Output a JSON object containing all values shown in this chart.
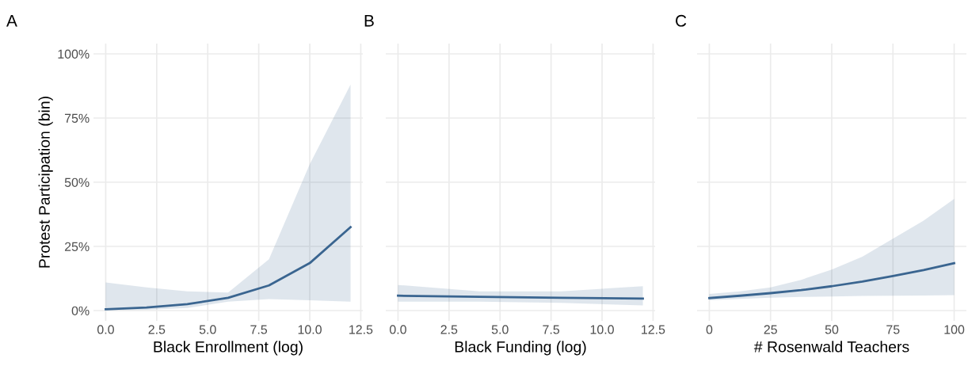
{
  "chart_data": [
    {
      "type": "line",
      "title": "A",
      "xlabel": "Black Enrollment (log)",
      "ylabel": "Protest Participation (bin)",
      "xlim": [
        -0.6,
        12.6
      ],
      "xticks": [
        {
          "value": 0,
          "label": "0.0"
        },
        2.5,
        {
          "value": 5,
          "label": "5.0"
        },
        7.5,
        {
          "value": 10,
          "label": "10.0"
        },
        12.5
      ],
      "ylim": [
        -0.04,
        1.04
      ],
      "yticks": [
        {
          "value": 0,
          "label": "0%"
        },
        {
          "value": 0.25,
          "label": "25%"
        },
        {
          "value": 0.5,
          "label": "50%"
        },
        {
          "value": 0.75,
          "label": "75%"
        },
        {
          "value": 1,
          "label": "100%"
        }
      ],
      "grid": true,
      "series": [
        {
          "color": "#3a6590",
          "x": [
            0,
            2,
            4,
            6,
            8,
            10,
            12
          ],
          "values": [
            0.005,
            0.012,
            0.025,
            0.05,
            0.098,
            0.185,
            0.325
          ],
          "lower": [
            0.002,
            0.003,
            0.01,
            0.035,
            0.045,
            0.04,
            0.035
          ],
          "upper": [
            0.11,
            0.09,
            0.075,
            0.07,
            0.2,
            0.57,
            0.88
          ]
        }
      ]
    },
    {
      "type": "line",
      "title": "B",
      "xlabel": "Black Funding (log)",
      "xlim": [
        -0.6,
        12.6
      ],
      "xticks": [
        {
          "value": 0,
          "label": "0.0"
        },
        2.5,
        {
          "value": 5,
          "label": "5.0"
        },
        7.5,
        {
          "value": 10,
          "label": "10.0"
        },
        12.5
      ],
      "ylim": [
        -0.04,
        1.04
      ],
      "yticks": [
        {
          "value": 0,
          "label": null
        },
        {
          "value": 0.25,
          "label": null
        },
        {
          "value": 0.5,
          "label": null
        },
        {
          "value": 0.75,
          "label": null
        },
        {
          "value": 1,
          "label": null
        }
      ],
      "tick_labels": "x",
      "grid": true,
      "series": [
        {
          "color": "#3a6590",
          "x": [
            0,
            4,
            8,
            12
          ],
          "values": [
            0.058,
            0.054,
            0.05,
            0.047
          ],
          "lower": [
            0.035,
            0.035,
            0.03,
            0.02
          ],
          "upper": [
            0.1,
            0.075,
            0.075,
            0.095
          ]
        }
      ]
    },
    {
      "type": "line",
      "title": "C",
      "xlabel": "# Rosenwald Teachers",
      "xlim": [
        -5,
        105
      ],
      "xticks": [
        0,
        25,
        50,
        75,
        100
      ],
      "ylim": [
        -0.04,
        1.04
      ],
      "yticks": [
        {
          "value": 0,
          "label": null
        },
        {
          "value": 0.25,
          "label": null
        },
        {
          "value": 0.5,
          "label": null
        },
        {
          "value": 0.75,
          "label": null
        },
        {
          "value": 1,
          "label": null
        }
      ],
      "tick_labels": "x",
      "grid": true,
      "series": [
        {
          "color": "#3a6590",
          "x": [
            0,
            12.5,
            25,
            37.5,
            50,
            62.5,
            75,
            87.5,
            100
          ],
          "values": [
            0.049,
            0.058,
            0.068,
            0.08,
            0.095,
            0.113,
            0.135,
            0.158,
            0.185
          ],
          "lower": [
            0.04,
            0.046,
            0.05,
            0.053,
            0.055,
            0.057,
            0.058,
            0.059,
            0.06
          ],
          "upper": [
            0.065,
            0.075,
            0.09,
            0.12,
            0.16,
            0.21,
            0.28,
            0.35,
            0.435
          ]
        }
      ]
    }
  ]
}
